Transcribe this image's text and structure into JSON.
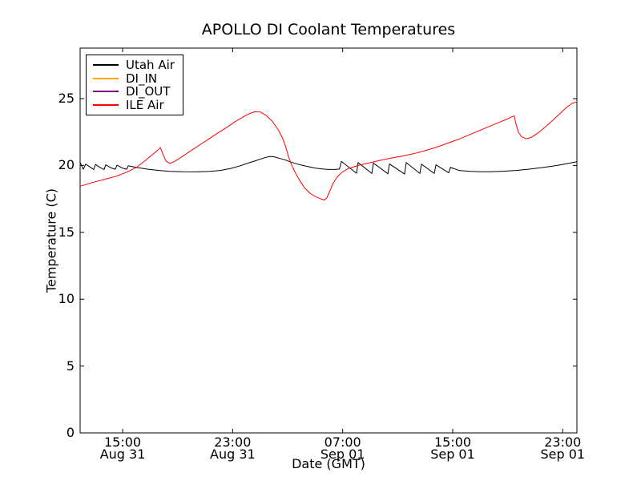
{
  "chart": {
    "title": "APOLLO DI Coolant Temperatures",
    "xlabel": "Date (GMT)",
    "ylabel": "Temperature (C)"
  },
  "chart_data": {
    "type": "line",
    "title": "APOLLO DI Coolant Temperatures",
    "xlabel": "Date (GMT)",
    "ylabel": "Temperature (C)",
    "x_unit": "hours from left edge (approx Aug 31 12:00 GMT)",
    "xlim": [
      0,
      36.12
    ],
    "ylim": [
      0,
      28.78
    ],
    "grid": false,
    "legend_position": "upper left",
    "frame_color": "#000000",
    "y_ticks": [
      {
        "v": 0,
        "label": "0"
      },
      {
        "v": 5,
        "label": "5"
      },
      {
        "v": 10,
        "label": "10"
      },
      {
        "v": 15,
        "label": "15"
      },
      {
        "v": 20,
        "label": "20"
      },
      {
        "v": 25,
        "label": "25"
      }
    ],
    "x_ticks": [
      {
        "h": 3.09,
        "time": "15:00",
        "date": "Aug 31"
      },
      {
        "h": 11.09,
        "time": "23:00",
        "date": "Aug 31"
      },
      {
        "h": 19.09,
        "time": "07:00",
        "date": "Sep 01"
      },
      {
        "h": 27.09,
        "time": "15:00",
        "date": "Sep 01"
      },
      {
        "h": 35.09,
        "time": "23:00",
        "date": "Sep 01"
      }
    ],
    "series": [
      {
        "name": "Utah Air",
        "color": "#000000",
        "points": [
          [
            0.0,
            20.25
          ],
          [
            0.12,
            19.95
          ],
          [
            0.23,
            19.72
          ],
          [
            0.41,
            20.1
          ],
          [
            0.7,
            19.9
          ],
          [
            0.99,
            19.7
          ],
          [
            1.11,
            20.08
          ],
          [
            1.45,
            19.85
          ],
          [
            1.75,
            19.7
          ],
          [
            1.86,
            20.05
          ],
          [
            2.25,
            19.82
          ],
          [
            2.56,
            19.72
          ],
          [
            2.68,
            20.02
          ],
          [
            3.1,
            19.8
          ],
          [
            3.38,
            19.72
          ],
          [
            3.5,
            19.98
          ],
          [
            4.08,
            19.85
          ],
          [
            4.95,
            19.72
          ],
          [
            5.83,
            19.62
          ],
          [
            6.52,
            19.56
          ],
          [
            7.46,
            19.53
          ],
          [
            8.45,
            19.52
          ],
          [
            9.44,
            19.56
          ],
          [
            10.19,
            19.63
          ],
          [
            10.95,
            19.78
          ],
          [
            11.54,
            19.95
          ],
          [
            12.23,
            20.18
          ],
          [
            12.82,
            20.38
          ],
          [
            13.4,
            20.58
          ],
          [
            13.81,
            20.68
          ],
          [
            14.1,
            20.65
          ],
          [
            14.56,
            20.52
          ],
          [
            14.97,
            20.4
          ],
          [
            15.26,
            20.28
          ],
          [
            15.73,
            20.13
          ],
          [
            16.19,
            20.0
          ],
          [
            16.66,
            19.9
          ],
          [
            17.13,
            19.8
          ],
          [
            17.59,
            19.74
          ],
          [
            18.06,
            19.7
          ],
          [
            18.53,
            19.7
          ],
          [
            18.85,
            19.73
          ],
          [
            19.0,
            20.3
          ],
          [
            20.1,
            19.42
          ],
          [
            20.21,
            20.22
          ],
          [
            21.21,
            19.4
          ],
          [
            21.32,
            20.18
          ],
          [
            22.38,
            19.38
          ],
          [
            22.49,
            20.12
          ],
          [
            23.59,
            19.36
          ],
          [
            23.71,
            20.22
          ],
          [
            24.7,
            19.4
          ],
          [
            24.82,
            20.1
          ],
          [
            25.75,
            19.4
          ],
          [
            25.87,
            20.05
          ],
          [
            26.8,
            19.45
          ],
          [
            26.92,
            19.85
          ],
          [
            27.6,
            19.62
          ],
          [
            28.4,
            19.56
          ],
          [
            29.1,
            19.53
          ],
          [
            29.85,
            19.53
          ],
          [
            30.75,
            19.57
          ],
          [
            31.7,
            19.63
          ],
          [
            32.6,
            19.72
          ],
          [
            33.5,
            19.83
          ],
          [
            34.35,
            19.95
          ],
          [
            35.1,
            20.08
          ],
          [
            35.7,
            20.2
          ],
          [
            36.12,
            20.28
          ]
        ]
      },
      {
        "name": "DI_IN",
        "color": "#ffa500",
        "points": []
      },
      {
        "name": "DI_OUT",
        "color": "#800080",
        "points": []
      },
      {
        "name": "ILE Air",
        "color": "#ff0000",
        "points": [
          [
            0.0,
            18.45
          ],
          [
            0.87,
            18.72
          ],
          [
            1.75,
            18.95
          ],
          [
            2.62,
            19.2
          ],
          [
            3.38,
            19.5
          ],
          [
            4.08,
            19.85
          ],
          [
            4.66,
            20.3
          ],
          [
            5.24,
            20.8
          ],
          [
            5.65,
            21.15
          ],
          [
            5.83,
            21.35
          ],
          [
            6.0,
            20.9
          ],
          [
            6.23,
            20.35
          ],
          [
            6.52,
            20.15
          ],
          [
            6.87,
            20.3
          ],
          [
            7.46,
            20.7
          ],
          [
            8.27,
            21.25
          ],
          [
            9.09,
            21.8
          ],
          [
            9.9,
            22.35
          ],
          [
            10.66,
            22.85
          ],
          [
            11.3,
            23.3
          ],
          [
            11.88,
            23.65
          ],
          [
            12.35,
            23.9
          ],
          [
            12.7,
            24.02
          ],
          [
            13.11,
            24.0
          ],
          [
            13.52,
            23.75
          ],
          [
            13.98,
            23.3
          ],
          [
            14.45,
            22.6
          ],
          [
            14.7,
            22.1
          ],
          [
            14.95,
            21.4
          ],
          [
            15.15,
            20.7
          ],
          [
            15.35,
            20.1
          ],
          [
            15.6,
            19.55
          ],
          [
            15.95,
            18.9
          ],
          [
            16.35,
            18.3
          ],
          [
            16.75,
            17.9
          ],
          [
            17.15,
            17.65
          ],
          [
            17.5,
            17.5
          ],
          [
            17.77,
            17.42
          ],
          [
            17.95,
            17.6
          ],
          [
            18.18,
            18.15
          ],
          [
            18.41,
            18.7
          ],
          [
            18.7,
            19.15
          ],
          [
            19.05,
            19.5
          ],
          [
            19.52,
            19.78
          ],
          [
            20.21,
            20.0
          ],
          [
            20.97,
            20.18
          ],
          [
            21.79,
            20.38
          ],
          [
            22.6,
            20.55
          ],
          [
            23.42,
            20.7
          ],
          [
            24.23,
            20.88
          ],
          [
            25.05,
            21.1
          ],
          [
            25.86,
            21.35
          ],
          [
            26.68,
            21.65
          ],
          [
            27.5,
            21.95
          ],
          [
            28.31,
            22.3
          ],
          [
            29.13,
            22.65
          ],
          [
            29.83,
            22.95
          ],
          [
            30.53,
            23.25
          ],
          [
            31.11,
            23.5
          ],
          [
            31.46,
            23.68
          ],
          [
            31.57,
            23.7
          ],
          [
            31.69,
            23.1
          ],
          [
            31.86,
            22.5
          ],
          [
            32.1,
            22.15
          ],
          [
            32.45,
            22.0
          ],
          [
            32.8,
            22.1
          ],
          [
            33.32,
            22.45
          ],
          [
            33.9,
            22.95
          ],
          [
            34.49,
            23.5
          ],
          [
            35.01,
            24.0
          ],
          [
            35.42,
            24.4
          ],
          [
            35.77,
            24.65
          ],
          [
            36.12,
            24.75
          ]
        ]
      }
    ]
  }
}
